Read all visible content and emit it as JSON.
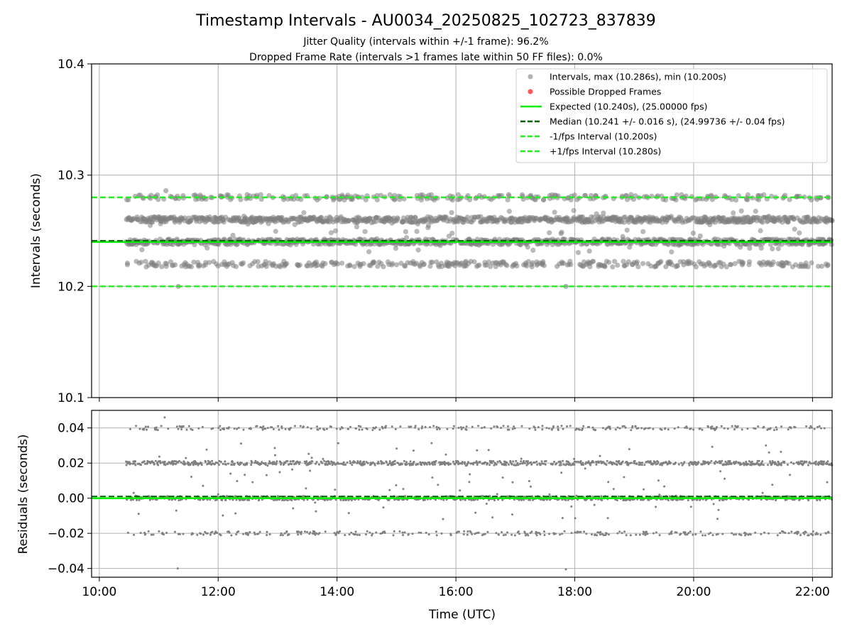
{
  "title": "Timestamp Intervals - AU0034_20250825_102723_837839",
  "subtitle_lines": [
    "Jitter Quality (intervals within +/-1 frame): 96.2%",
    "Dropped Frame Rate (intervals >1 frames late within 50 FF files): 0.0%"
  ],
  "colors": {
    "points": "#808080",
    "dropped": "#ff5555",
    "expected": "#00ee00",
    "median": "#006400",
    "bounds": "#22ee22",
    "grid": "#b0b0b0"
  },
  "chart_data": [
    {
      "type": "scatter",
      "panel": "intervals",
      "xlabel": "",
      "ylabel": "Intervals (seconds)",
      "xlim_hours": [
        9.87,
        22.33
      ],
      "ylim": [
        10.1,
        10.4
      ],
      "yticks": [
        "10.1",
        "10.2",
        "10.3",
        "10.4"
      ],
      "grid": true,
      "legend_position": "top-right",
      "data_x_range_hours": [
        10.45,
        22.33
      ],
      "interval_bands": [
        {
          "value": 10.22,
          "spread": 0.0025,
          "share": 0.14
        },
        {
          "value": 10.24,
          "spread": 0.0025,
          "share": 0.35
        },
        {
          "value": 10.26,
          "spread": 0.0025,
          "share": 0.35
        },
        {
          "value": 10.28,
          "spread": 0.0025,
          "share": 0.12
        },
        {
          "value": 10.25,
          "spread": 0.02,
          "share": 0.04
        }
      ],
      "max": 10.286,
      "min": 10.2,
      "lines": [
        {
          "name": "Expected (10.240s), (25.00000 fps)",
          "y": 10.24,
          "style": "solid"
        },
        {
          "name": "Median (10.241 +/- 0.016 s), (24.99736 +/- 0.04 fps)",
          "y": 10.241,
          "style": "dashed"
        },
        {
          "name": "-1/fps Interval (10.200s)",
          "y": 10.2,
          "style": "dashed"
        },
        {
          "name": "+1/fps Interval (10.280s)",
          "y": 10.28,
          "style": "dashed"
        }
      ],
      "legend": [
        {
          "label": "Intervals, max (10.286s), min (10.200s)",
          "kind": "marker-gray"
        },
        {
          "label": "Possible Dropped Frames",
          "kind": "marker-red"
        },
        {
          "label": "Expected (10.240s), (25.00000 fps)",
          "kind": "line-expected"
        },
        {
          "label": "Median (10.241 +/- 0.016 s), (24.99736 +/- 0.04 fps)",
          "kind": "line-median"
        },
        {
          "label": "-1/fps Interval (10.200s)",
          "kind": "line-minus"
        },
        {
          "label": "+1/fps Interval (10.280s)",
          "kind": "line-plus"
        }
      ]
    },
    {
      "type": "scatter",
      "panel": "residuals",
      "xlabel": "Time (UTC)",
      "ylabel": "Residuals (seconds)",
      "xlim_hours": [
        9.87,
        22.33
      ],
      "ylim": [
        -0.045,
        0.05
      ],
      "yticks": [
        "−0.04",
        "−0.02",
        "0.00",
        "0.02",
        "0.04"
      ],
      "ytick_values": [
        -0.04,
        -0.02,
        0.0,
        0.02,
        0.04
      ],
      "xticks": [
        "10:00",
        "12:00",
        "14:00",
        "16:00",
        "18:00",
        "20:00",
        "22:00"
      ],
      "xtick_values_hours": [
        10,
        12,
        14,
        16,
        18,
        20,
        22
      ],
      "grid": true,
      "residual_bands": [
        {
          "value": -0.02,
          "spread": 0.0012,
          "share": 0.14
        },
        {
          "value": 0.0,
          "spread": 0.0012,
          "share": 0.35
        },
        {
          "value": 0.02,
          "spread": 0.0012,
          "share": 0.35
        },
        {
          "value": 0.04,
          "spread": 0.0012,
          "share": 0.12
        },
        {
          "value": 0.01,
          "spread": 0.022,
          "share": 0.04
        }
      ],
      "outliers": [
        {
          "x": 11.32,
          "y": -0.04
        },
        {
          "x": 17.85,
          "y": -0.0405
        },
        {
          "x": 11.1,
          "y": 0.046
        }
      ],
      "lines": [
        {
          "name": "Expected",
          "y": 0.0,
          "style": "solid"
        },
        {
          "name": "Median",
          "y": 0.001,
          "style": "dashed"
        }
      ]
    }
  ]
}
